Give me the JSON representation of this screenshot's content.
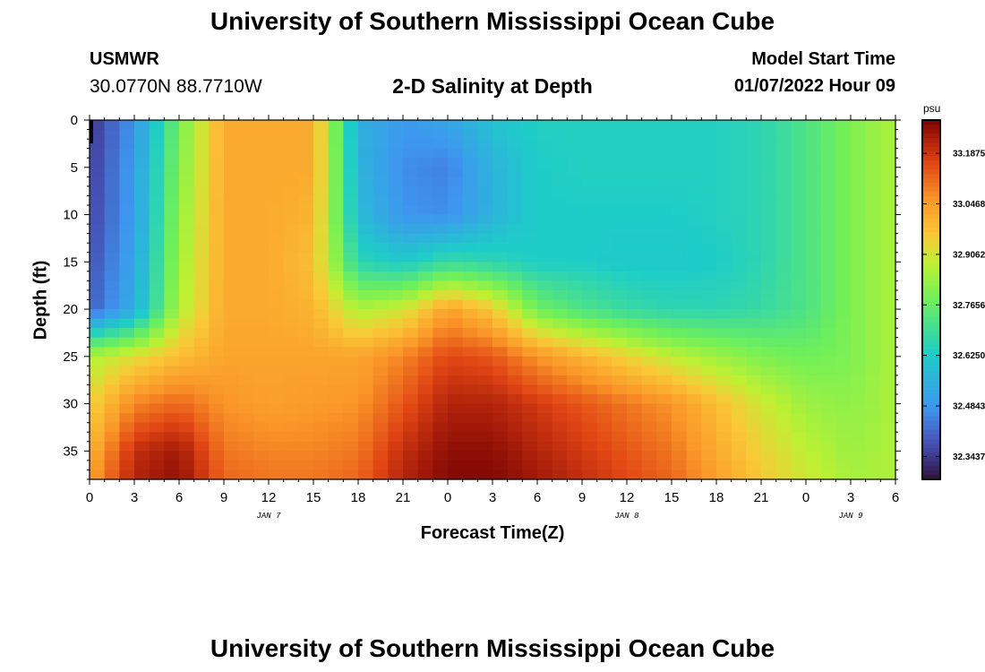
{
  "title": "University of Southern Mississippi Ocean Cube",
  "footer_title": "University of Southern Mississippi Ocean Cube",
  "station": {
    "name": "USMWR",
    "coords": "30.0770N  88.7710W"
  },
  "subtitle": "2-D Salinity at Depth",
  "model_start": {
    "label": "Model Start Time",
    "value": "01/07/2022 Hour 09"
  },
  "colorbar": {
    "unit": "psu",
    "ticks": [
      "33.1875",
      "33.0468",
      "32.9062",
      "32.7656",
      "32.6250",
      "32.4843",
      "32.3437"
    ]
  },
  "chart_data": {
    "type": "heatmap",
    "title": "2-D Salinity at Depth",
    "xlabel": "Forecast Time(Z)",
    "ylabel": "Depth (ft)",
    "x_tick_labels": [
      "0",
      "3",
      "6",
      "9",
      "12",
      "15",
      "18",
      "21",
      "0",
      "3",
      "6",
      "9",
      "12",
      "15",
      "18",
      "21",
      "0",
      "3",
      "6"
    ],
    "date_labels": [
      {
        "label": "JAN 7",
        "x_hour": 12
      },
      {
        "label": "JAN 8",
        "x_hour": 36
      },
      {
        "label": "JAN 9",
        "x_hour": 51
      }
    ],
    "x_range_hours": [
      0,
      54
    ],
    "y_ticks": [
      0,
      5,
      10,
      15,
      20,
      25,
      30,
      35
    ],
    "y_range_ft": [
      0,
      38
    ],
    "z_unit": "psu",
    "z_range": [
      32.28,
      33.28
    ],
    "x_hours": [
      0,
      3,
      6,
      9,
      12,
      15,
      18,
      21,
      24,
      27,
      30,
      33,
      36,
      39,
      42,
      45,
      48,
      51,
      54
    ],
    "depths_ft": [
      0,
      5,
      10,
      15,
      20,
      25,
      30,
      35,
      38
    ],
    "salinity_psu": [
      [
        32.34,
        32.48,
        32.78,
        33.02,
        33.02,
        33.02,
        32.55,
        32.49,
        32.52,
        32.6,
        32.64,
        32.64,
        32.64,
        32.64,
        32.64,
        32.66,
        32.72,
        32.8,
        32.86
      ],
      [
        32.35,
        32.5,
        32.8,
        33.02,
        33.02,
        33.02,
        32.56,
        32.47,
        32.45,
        32.56,
        32.63,
        32.64,
        32.64,
        32.64,
        32.64,
        32.66,
        32.72,
        32.8,
        32.86
      ],
      [
        32.36,
        32.5,
        32.82,
        33.02,
        33.02,
        33.0,
        32.58,
        32.48,
        32.47,
        32.56,
        32.63,
        32.63,
        32.63,
        32.63,
        32.64,
        32.66,
        32.72,
        32.8,
        32.86
      ],
      [
        32.38,
        32.52,
        32.84,
        33.02,
        33.02,
        32.98,
        32.66,
        32.62,
        32.68,
        32.66,
        32.63,
        32.63,
        32.62,
        32.62,
        32.63,
        32.66,
        32.72,
        32.8,
        32.86
      ],
      [
        32.4,
        32.54,
        32.86,
        33.02,
        33.02,
        33.0,
        32.86,
        32.9,
        33.04,
        32.96,
        32.78,
        32.72,
        32.68,
        32.66,
        32.66,
        32.68,
        32.72,
        32.8,
        32.86
      ],
      [
        32.86,
        32.92,
        32.98,
        33.03,
        33.03,
        33.03,
        33.03,
        33.08,
        33.16,
        33.14,
        33.06,
        33.0,
        32.94,
        32.88,
        32.84,
        32.8,
        32.78,
        32.8,
        32.86
      ],
      [
        32.94,
        33.08,
        33.12,
        33.06,
        33.04,
        33.05,
        33.06,
        33.14,
        33.22,
        33.22,
        33.18,
        33.14,
        33.1,
        33.06,
        32.98,
        32.9,
        32.84,
        32.82,
        32.86
      ],
      [
        33.0,
        33.2,
        33.24,
        33.1,
        33.08,
        33.08,
        33.1,
        33.2,
        33.26,
        33.26,
        33.22,
        33.18,
        33.14,
        33.1,
        33.02,
        32.94,
        32.88,
        32.84,
        32.86
      ],
      [
        33.04,
        33.22,
        33.26,
        33.12,
        33.1,
        33.1,
        33.12,
        33.22,
        33.27,
        33.27,
        33.24,
        33.2,
        33.16,
        33.12,
        33.04,
        32.96,
        32.9,
        32.85,
        32.86
      ]
    ]
  }
}
